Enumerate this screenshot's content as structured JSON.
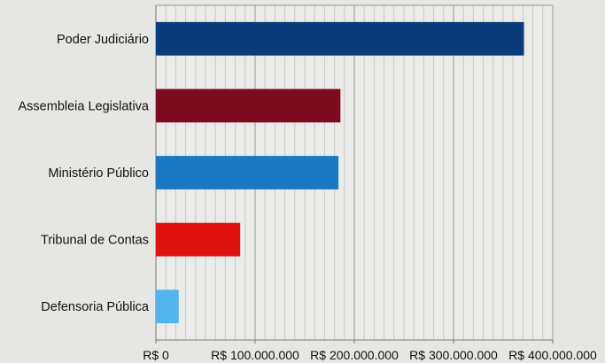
{
  "chart_data": {
    "type": "bar",
    "orientation": "horizontal",
    "title": "",
    "xlabel": "",
    "ylabel": "",
    "categories": [
      "Poder Judiciário",
      "Assembleia Legislativa",
      "Ministério Público",
      "Tribunal de Contas",
      "Defensoria Pública"
    ],
    "values": [
      371000000,
      186000000,
      184000000,
      85000000,
      23000000
    ],
    "colors": [
      "#0b3b7a",
      "#7d0a1f",
      "#1a78c2",
      "#e01212",
      "#52b6ec"
    ],
    "xlim": [
      0,
      400000000
    ],
    "x_ticks": [
      0,
      100000000,
      200000000,
      300000000,
      400000000
    ],
    "x_tick_labels": [
      "R$ 0",
      "R$ 100.000.000",
      "R$ 200.000.000",
      "R$ 300.000.000",
      "R$ 400.000.000"
    ],
    "grid": true,
    "legend": "none"
  }
}
